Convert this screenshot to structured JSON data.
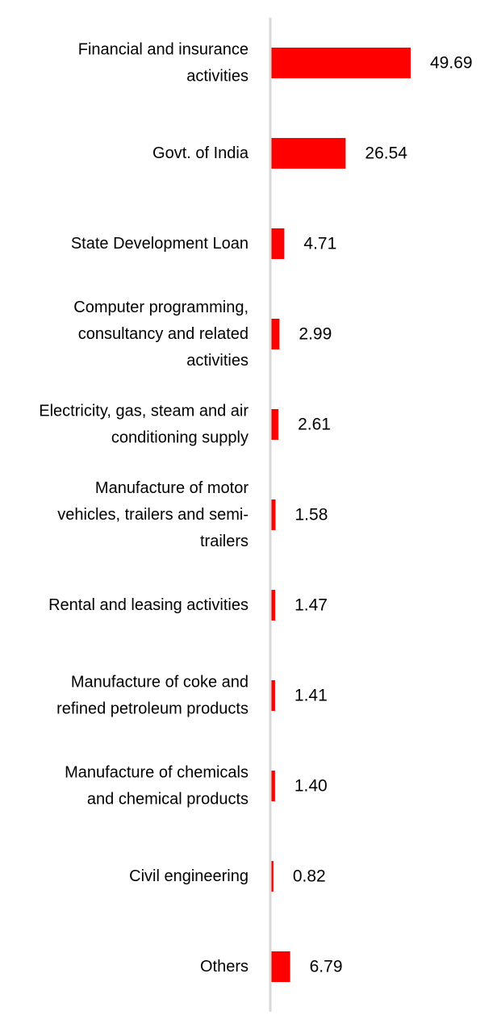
{
  "chart_data": {
    "type": "bar",
    "orientation": "horizontal",
    "categories": [
      "Financial and insurance activities",
      "Govt. of India",
      "State Development Loan",
      "Computer programming, consultancy and related activities",
      "Electricity, gas, steam and air conditioning supply",
      "Manufacture of motor vehicles, trailers and semi-trailers",
      "Rental and leasing activities",
      "Manufacture of coke and refined petroleum products",
      "Manufacture of chemicals and chemical products",
      "Civil engineering",
      "Others"
    ],
    "category_lines": [
      [
        "Financial and insurance",
        "activities"
      ],
      [
        "Govt. of India"
      ],
      [
        "State Development Loan"
      ],
      [
        "Computer programming,",
        "consultancy and related",
        "activities"
      ],
      [
        "Electricity, gas, steam and air",
        "conditioning supply"
      ],
      [
        "Manufacture of motor",
        "vehicles, trailers and semi-",
        "trailers"
      ],
      [
        "Rental and leasing activities"
      ],
      [
        "Manufacture of coke and",
        "refined petroleum products"
      ],
      [
        "Manufacture of chemicals",
        "and chemical products"
      ],
      [
        "Civil engineering"
      ],
      [
        "Others"
      ]
    ],
    "values": [
      49.69,
      26.54,
      4.71,
      2.99,
      2.61,
      1.58,
      1.47,
      1.41,
      1.4,
      0.82,
      6.79
    ],
    "value_labels": [
      "49.69",
      "26.54",
      "4.71",
      "2.99",
      "2.61",
      "1.58",
      "1.47",
      "1.41",
      "1.40",
      "0.82",
      "6.79"
    ],
    "title": "",
    "xlabel": "",
    "ylabel": "",
    "xlim": [
      0,
      49.69
    ],
    "bar_color": "#ff0000",
    "axis_color": "#d9d9d9",
    "grid": false,
    "legend": "none"
  }
}
